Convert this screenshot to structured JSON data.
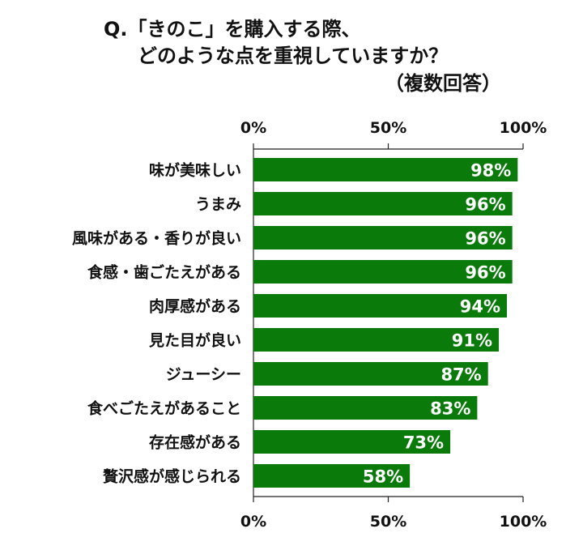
{
  "title_lines": [
    "Q.「きのこ」を購入する際、",
    "どのような点を重視していますか？",
    "（複数回答）"
  ],
  "colors": {
    "bar": "#0a7a0a",
    "axis": "#222222",
    "text": "#111111",
    "value_text": "#ffffff"
  },
  "chart_data": {
    "type": "bar",
    "orientation": "horizontal",
    "title": "Q.「きのこ」を購入する際、どのような点を重視していますか？（複数回答）",
    "categories": [
      "味が美味しい",
      "うまみ",
      "風味がある・香りが良い",
      "食感・歯ごたえがある",
      "肉厚感がある",
      "見た目が良い",
      "ジューシー",
      "食べごたえがあること",
      "存在感がある",
      "贅沢感が感じられる"
    ],
    "values": [
      98,
      96,
      96,
      96,
      94,
      91,
      87,
      83,
      73,
      58
    ],
    "value_labels": [
      "98%",
      "96%",
      "96%",
      "96%",
      "94%",
      "91%",
      "87%",
      "83%",
      "73%",
      "58%"
    ],
    "xlim": [
      0,
      100
    ],
    "x_ticks": [
      0,
      50,
      100
    ],
    "x_tick_labels": [
      "0%",
      "50%",
      "100%"
    ],
    "x_axis_top_and_bottom": true,
    "grid": false,
    "legend": "none"
  }
}
